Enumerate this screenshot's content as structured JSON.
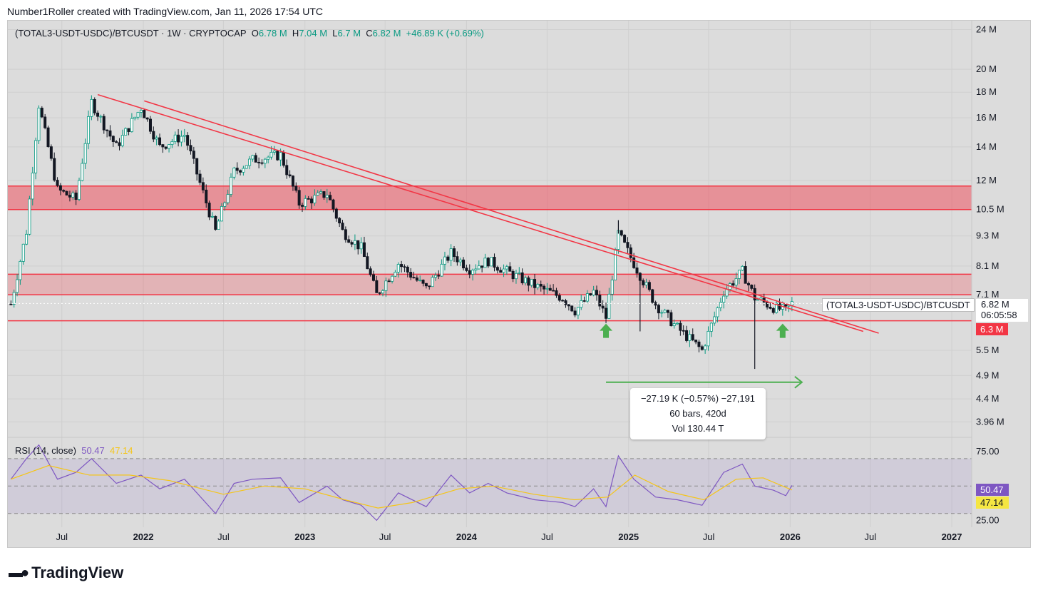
{
  "header": {
    "note": "Number1Roller created with TradingView.com, Jan 11, 2026 17:54 UTC"
  },
  "legend": {
    "symbol": "(TOTAL3-USDT-USDC)/BTCUSDT · 1W · CRYPTOCAP",
    "o_label": "O",
    "o_value": "6.78 M",
    "h_label": "H",
    "h_value": "7.04 M",
    "l_label": "L",
    "l_value": "6.7 M",
    "c_label": "C",
    "c_value": "6.82 M",
    "change": "+46.89 K (+0.69%)"
  },
  "rsi_legend": {
    "label": "RSI (14, close)",
    "rsi_value": "50.47",
    "ma_value": "47.14"
  },
  "measure": {
    "line1": "−27.19 K (−0.57%) −27,191",
    "line2": "60 bars, 420d",
    "line3": "Vol 130.44 T"
  },
  "tags": {
    "series": "(TOTAL3-USDT-USDC)/BTCUSDT",
    "price": "6.82 M",
    "countdown": "06:05:58",
    "level": "6.3 M",
    "rsi": "50.47",
    "rsi_ma": "47.14"
  },
  "footer": {
    "brand": "TradingView"
  },
  "colors": {
    "up": "#089981",
    "down": "#131722",
    "zone": "#f23645",
    "rsi": "#7e57c2",
    "rsi_ma": "#f5c518",
    "arrow": "#4caf50"
  },
  "chart_data": {
    "type": "candlestick",
    "scale": "log",
    "timeframe": "1W",
    "x_range": [
      "2021-03-01",
      "2027-02-15"
    ],
    "y_range": [
      3700000,
      25000000
    ],
    "y_ticks": [
      {
        "v": 24000000,
        "label": "24 M"
      },
      {
        "v": 20000000,
        "label": "20 M"
      },
      {
        "v": 18000000,
        "label": "18 M"
      },
      {
        "v": 16000000,
        "label": "16 M"
      },
      {
        "v": 14000000,
        "label": "14 M"
      },
      {
        "v": 12000000,
        "label": "12 M"
      },
      {
        "v": 10500000,
        "label": "10.5 M"
      },
      {
        "v": 9300000,
        "label": "9.3 M"
      },
      {
        "v": 8100000,
        "label": "8.1 M"
      },
      {
        "v": 7100000,
        "label": "7.1 M"
      },
      {
        "v": 5500000,
        "label": "5.5 M"
      },
      {
        "v": 4900000,
        "label": "4.9 M"
      },
      {
        "v": 4400000,
        "label": "4.4 M"
      },
      {
        "v": 3960000,
        "label": "3.96 M"
      }
    ],
    "x_ticks": [
      {
        "d": "2021-07-01",
        "label": "Jul",
        "bold": false
      },
      {
        "d": "2022-01-01",
        "label": "2022",
        "bold": true
      },
      {
        "d": "2022-07-01",
        "label": "Jul",
        "bold": false
      },
      {
        "d": "2023-01-01",
        "label": "2023",
        "bold": true
      },
      {
        "d": "2023-07-01",
        "label": "Jul",
        "bold": false
      },
      {
        "d": "2024-01-01",
        "label": "2024",
        "bold": true
      },
      {
        "d": "2024-07-01",
        "label": "Jul",
        "bold": false
      },
      {
        "d": "2025-01-01",
        "label": "2025",
        "bold": true
      },
      {
        "d": "2025-07-01",
        "label": "Jul",
        "bold": false
      },
      {
        "d": "2026-01-01",
        "label": "2026",
        "bold": true
      },
      {
        "d": "2026-07-01",
        "label": "Jul",
        "bold": false
      },
      {
        "d": "2027-01-01",
        "label": "2027",
        "bold": true
      }
    ],
    "price_path": [
      [
        "2021-03-08",
        6800000
      ],
      [
        "2021-04-12",
        9500000
      ],
      [
        "2021-05-10",
        17000000
      ],
      [
        "2021-06-21",
        11500000
      ],
      [
        "2021-08-02",
        11000000
      ],
      [
        "2021-09-06",
        17200000
      ],
      [
        "2021-11-01",
        14000000
      ],
      [
        "2021-12-27",
        16800000
      ],
      [
        "2022-02-07",
        14000000
      ],
      [
        "2022-04-04",
        14800000
      ],
      [
        "2022-06-13",
        9500000
      ],
      [
        "2022-07-25",
        12500000
      ],
      [
        "2022-09-05",
        13200000
      ],
      [
        "2022-11-07",
        13500000
      ],
      [
        "2022-12-19",
        10800000
      ],
      [
        "2023-02-20",
        11300000
      ],
      [
        "2023-03-27",
        9500000
      ],
      [
        "2023-05-08",
        8800000
      ],
      [
        "2023-06-12",
        7100000
      ],
      [
        "2023-07-31",
        8200000
      ],
      [
        "2023-10-02",
        7300000
      ],
      [
        "2023-11-27",
        8600000
      ],
      [
        "2024-01-08",
        8000000
      ],
      [
        "2024-02-19",
        8300000
      ],
      [
        "2024-04-01",
        7900000
      ],
      [
        "2024-06-03",
        7400000
      ],
      [
        "2024-08-05",
        7000000
      ],
      [
        "2024-09-02",
        6600000
      ],
      [
        "2024-10-14",
        7200000
      ],
      [
        "2024-11-11",
        6400000
      ],
      [
        "2024-12-09",
        9400000
      ],
      [
        "2025-01-13",
        8200000
      ],
      [
        "2025-03-03",
        6800000
      ],
      [
        "2025-04-21",
        6100000
      ],
      [
        "2025-06-16",
        5500000
      ],
      [
        "2025-08-04",
        7200000
      ],
      [
        "2025-09-15",
        7900000
      ],
      [
        "2025-10-13",
        7000000
      ],
      [
        "2025-11-24",
        6700000
      ],
      [
        "2025-12-22",
        6600000
      ],
      [
        "2026-01-05",
        6820000
      ]
    ],
    "wick_extremes": [
      {
        "d": "2024-12-09",
        "high": 10000000
      },
      {
        "d": "2025-10-13",
        "low": 5050000
      },
      {
        "d": "2025-01-27",
        "low": 6000000
      }
    ],
    "resistance_zones": [
      {
        "from": 10500000,
        "to": 11700000
      },
      {
        "from": 7100000,
        "to": 7800000
      }
    ],
    "support_line": 6300000,
    "trendlines": [
      {
        "from": [
          "2021-09-20",
          17800000
        ],
        "to": [
          "2026-06-15",
          6000000
        ]
      },
      {
        "from": [
          "2022-01-03",
          17300000
        ],
        "to": [
          "2026-07-20",
          5950000
        ]
      }
    ],
    "arrows": [
      "2024-11-11",
      "2025-12-15"
    ],
    "measure_range": {
      "from": "2024-11-11",
      "to": "2026-01-05",
      "price": 4750000
    },
    "rsi": {
      "y_range": [
        20,
        85
      ],
      "levels": [
        {
          "v": 75,
          "label": "75.00"
        },
        {
          "v": 25,
          "label": "25.00"
        }
      ],
      "band": [
        70,
        30
      ],
      "mid": 50,
      "rsi_path": [
        [
          "2021-03-08",
          55
        ],
        [
          "2021-04-12",
          70
        ],
        [
          "2021-05-10",
          80
        ],
        [
          "2021-06-21",
          55
        ],
        [
          "2021-08-02",
          60
        ],
        [
          "2021-09-06",
          70
        ],
        [
          "2021-11-01",
          52
        ],
        [
          "2021-12-27",
          58
        ],
        [
          "2022-02-07",
          48
        ],
        [
          "2022-04-04",
          55
        ],
        [
          "2022-06-13",
          30
        ],
        [
          "2022-07-25",
          52
        ],
        [
          "2022-09-05",
          55
        ],
        [
          "2022-11-07",
          56
        ],
        [
          "2022-12-19",
          38
        ],
        [
          "2023-02-20",
          50
        ],
        [
          "2023-03-27",
          40
        ],
        [
          "2023-05-08",
          36
        ],
        [
          "2023-06-12",
          25
        ],
        [
          "2023-07-31",
          45
        ],
        [
          "2023-10-02",
          35
        ],
        [
          "2023-11-27",
          58
        ],
        [
          "2024-01-08",
          45
        ],
        [
          "2024-02-19",
          52
        ],
        [
          "2024-04-01",
          45
        ],
        [
          "2024-06-03",
          40
        ],
        [
          "2024-08-05",
          38
        ],
        [
          "2024-09-02",
          35
        ],
        [
          "2024-10-14",
          48
        ],
        [
          "2024-11-11",
          35
        ],
        [
          "2024-12-09",
          72
        ],
        [
          "2025-01-13",
          55
        ],
        [
          "2025-03-03",
          42
        ],
        [
          "2025-04-21",
          40
        ],
        [
          "2025-06-16",
          36
        ],
        [
          "2025-08-04",
          60
        ],
        [
          "2025-09-15",
          66
        ],
        [
          "2025-10-13",
          50
        ],
        [
          "2025-11-24",
          47
        ],
        [
          "2025-12-22",
          43
        ],
        [
          "2026-01-05",
          50.47
        ]
      ],
      "ma_path": [
        [
          "2021-03-08",
          55
        ],
        [
          "2021-06-01",
          65
        ],
        [
          "2021-09-01",
          58
        ],
        [
          "2021-12-01",
          58
        ],
        [
          "2022-03-01",
          54
        ],
        [
          "2022-07-01",
          44
        ],
        [
          "2022-10-01",
          50
        ],
        [
          "2023-01-01",
          48
        ],
        [
          "2023-04-01",
          40
        ],
        [
          "2023-06-15",
          34
        ],
        [
          "2023-09-01",
          38
        ],
        [
          "2023-12-15",
          48
        ],
        [
          "2024-03-01",
          50
        ],
        [
          "2024-06-01",
          44
        ],
        [
          "2024-09-01",
          40
        ],
        [
          "2024-11-15",
          42
        ],
        [
          "2025-01-15",
          58
        ],
        [
          "2025-04-01",
          46
        ],
        [
          "2025-06-20",
          40
        ],
        [
          "2025-09-01",
          55
        ],
        [
          "2025-11-01",
          56
        ],
        [
          "2026-01-05",
          47.14
        ]
      ]
    }
  }
}
